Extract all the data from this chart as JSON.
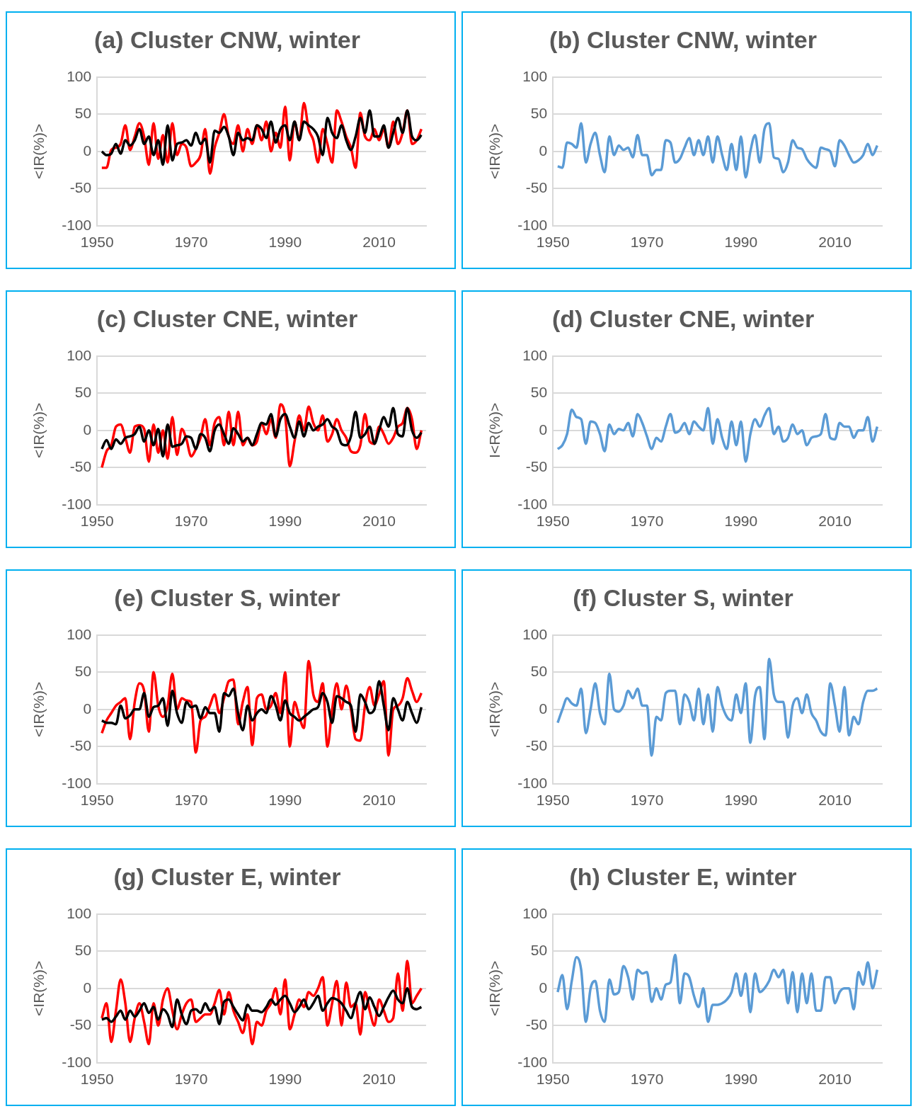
{
  "chart_data": [
    {
      "type": "line",
      "title": "(a) Cluster CNW, winter",
      "ylabel": "<IR(%)>",
      "xlim": [
        1950,
        2020
      ],
      "xticks": [
        1950,
        1970,
        1990,
        2010
      ],
      "ylim": [
        -100,
        100
      ],
      "yticks": [
        -100,
        -50,
        0,
        50,
        100
      ],
      "grid": "y",
      "x": [
        1951,
        1952,
        1953,
        1954,
        1955,
        1956,
        1957,
        1958,
        1959,
        1960,
        1961,
        1962,
        1963,
        1964,
        1965,
        1966,
        1967,
        1968,
        1969,
        1970,
        1971,
        1972,
        1973,
        1974,
        1975,
        1976,
        1977,
        1978,
        1979,
        1980,
        1981,
        1982,
        1983,
        1984,
        1985,
        1986,
        1987,
        1988,
        1989,
        1990,
        1991,
        1992,
        1993,
        1994,
        1995,
        1996,
        1997,
        1998,
        1999,
        2000,
        2001,
        2002,
        2003,
        2004,
        2005,
        2006,
        2007,
        2008,
        2009,
        2010,
        2011,
        2012,
        2013,
        2014,
        2015,
        2016,
        2017,
        2018,
        2019
      ],
      "series": [
        {
          "color": "#ff0000",
          "values": [
            -22,
            -22,
            2,
            5,
            10,
            35,
            2,
            20,
            38,
            20,
            -18,
            38,
            -10,
            22,
            -15,
            38,
            -5,
            10,
            5,
            -20,
            -15,
            -5,
            30,
            -30,
            5,
            25,
            50,
            20,
            10,
            35,
            0,
            30,
            10,
            35,
            15,
            40,
            0,
            25,
            5,
            60,
            -12,
            40,
            15,
            65,
            30,
            15,
            -15,
            30,
            10,
            -15,
            55,
            40,
            20,
            5,
            -22,
            52,
            20,
            15,
            30,
            15,
            30,
            5,
            40,
            10,
            25,
            55,
            10,
            15,
            30
          ]
        },
        {
          "color": "#000000",
          "values": [
            0,
            -5,
            -3,
            10,
            -3,
            15,
            8,
            15,
            30,
            10,
            20,
            -5,
            15,
            -18,
            35,
            -12,
            10,
            12,
            15,
            8,
            25,
            10,
            17,
            -15,
            28,
            25,
            33,
            20,
            -5,
            25,
            15,
            18,
            15,
            35,
            30,
            18,
            40,
            12,
            30,
            35,
            15,
            40,
            15,
            40,
            35,
            30,
            20,
            -5,
            45,
            25,
            18,
            35,
            15,
            2,
            20,
            45,
            25,
            55,
            20,
            20,
            35,
            5,
            25,
            45,
            25,
            55,
            20,
            15,
            22
          ]
        }
      ]
    },
    {
      "type": "line",
      "title": "(b) Cluster CNW, winter",
      "ylabel": "<IR(%)>",
      "xlim": [
        1950,
        2020
      ],
      "xticks": [
        1950,
        1970,
        1990,
        2010
      ],
      "ylim": [
        -100,
        100
      ],
      "yticks": [
        -100,
        -50,
        0,
        50,
        100
      ],
      "grid": "y",
      "x": [
        1951,
        1952,
        1953,
        1954,
        1955,
        1956,
        1957,
        1958,
        1959,
        1960,
        1961,
        1962,
        1963,
        1964,
        1965,
        1966,
        1967,
        1968,
        1969,
        1970,
        1971,
        1972,
        1973,
        1974,
        1975,
        1976,
        1977,
        1978,
        1979,
        1980,
        1981,
        1982,
        1983,
        1984,
        1985,
        1986,
        1987,
        1988,
        1989,
        1990,
        1991,
        1992,
        1993,
        1994,
        1995,
        1996,
        1997,
        1998,
        1999,
        2000,
        2001,
        2002,
        2003,
        2004,
        2005,
        2006,
        2007,
        2008,
        2009,
        2010,
        2011,
        2012,
        2013,
        2014,
        2015,
        2016,
        2017,
        2018,
        2019
      ],
      "series": [
        {
          "color": "#5b9bd5",
          "values": [
            -20,
            -22,
            12,
            10,
            5,
            38,
            -15,
            10,
            25,
            -5,
            -28,
            20,
            -5,
            8,
            2,
            5,
            -8,
            22,
            -5,
            -5,
            -32,
            -25,
            -25,
            15,
            12,
            -15,
            -10,
            5,
            18,
            -5,
            15,
            -5,
            20,
            -15,
            20,
            -5,
            -25,
            10,
            -25,
            20,
            -35,
            0,
            22,
            -15,
            30,
            38,
            -8,
            -10,
            -28,
            -15,
            15,
            5,
            3,
            -10,
            -18,
            -22,
            5,
            3,
            0,
            -20,
            15,
            8,
            -5,
            -15,
            -12,
            -5,
            10,
            -5,
            8
          ]
        }
      ]
    },
    {
      "type": "line",
      "title": "(c) Cluster CNE, winter",
      "ylabel": "<IR(%)>",
      "xlim": [
        1950,
        2020
      ],
      "xticks": [
        1950,
        1970,
        1990,
        2010
      ],
      "ylim": [
        -100,
        100
      ],
      "yticks": [
        -100,
        -50,
        0,
        50,
        100
      ],
      "grid": "y",
      "x": [
        1951,
        1952,
        1953,
        1954,
        1955,
        1956,
        1957,
        1958,
        1959,
        1960,
        1961,
        1962,
        1963,
        1964,
        1965,
        1966,
        1967,
        1968,
        1969,
        1970,
        1971,
        1972,
        1973,
        1974,
        1975,
        1976,
        1977,
        1978,
        1979,
        1980,
        1981,
        1982,
        1983,
        1984,
        1985,
        1986,
        1987,
        1988,
        1989,
        1990,
        1991,
        1992,
        1993,
        1994,
        1995,
        1996,
        1997,
        1998,
        1999,
        2000,
        2001,
        2002,
        2003,
        2004,
        2005,
        2006,
        2007,
        2008,
        2009,
        2010,
        2011,
        2012,
        2013,
        2014,
        2015,
        2016,
        2017,
        2018,
        2019
      ],
      "series": [
        {
          "color": "#ff0000",
          "values": [
            -50,
            -28,
            -20,
            5,
            8,
            -10,
            -30,
            5,
            7,
            2,
            -42,
            8,
            -30,
            0,
            -38,
            18,
            -33,
            2,
            -12,
            -35,
            -25,
            -10,
            15,
            -20,
            10,
            18,
            -20,
            25,
            -20,
            25,
            -20,
            -10,
            -20,
            -15,
            10,
            -5,
            15,
            -10,
            35,
            20,
            -48,
            -15,
            20,
            0,
            32,
            10,
            0,
            20,
            -15,
            -5,
            15,
            0,
            -10,
            -28,
            -30,
            -20,
            22,
            -15,
            -18,
            5,
            -5,
            -18,
            -10,
            5,
            10,
            30,
            15,
            -25,
            0
          ]
        },
        {
          "color": "#000000",
          "values": [
            -25,
            -13,
            -25,
            -12,
            -18,
            -10,
            -8,
            -5,
            5,
            -15,
            0,
            -20,
            2,
            -35,
            8,
            -22,
            -20,
            -18,
            -8,
            -10,
            -25,
            -5,
            -10,
            -28,
            0,
            8,
            -5,
            -18,
            3,
            -5,
            -15,
            -10,
            -20,
            -5,
            10,
            8,
            22,
            -8,
            15,
            22,
            5,
            -10,
            12,
            -8,
            10,
            0,
            5,
            8,
            15,
            5,
            0,
            -18,
            -20,
            -8,
            25,
            -10,
            -5,
            5,
            -18,
            0,
            18,
            5,
            30,
            -5,
            -8,
            30,
            0,
            -10,
            -3
          ]
        }
      ]
    },
    {
      "type": "line",
      "title": "(d) Cluster CNE, winter",
      "ylabel": "I<R(%)>",
      "xlim": [
        1950,
        2020
      ],
      "xticks": [
        1950,
        1970,
        1990,
        2010
      ],
      "ylim": [
        -100,
        100
      ],
      "yticks": [
        -100,
        -50,
        0,
        50,
        100
      ],
      "grid": "y",
      "x": [
        1951,
        1952,
        1953,
        1954,
        1955,
        1956,
        1957,
        1958,
        1959,
        1960,
        1961,
        1962,
        1963,
        1964,
        1965,
        1966,
        1967,
        1968,
        1969,
        1970,
        1971,
        1972,
        1973,
        1974,
        1975,
        1976,
        1977,
        1978,
        1979,
        1980,
        1981,
        1982,
        1983,
        1984,
        1985,
        1986,
        1987,
        1988,
        1989,
        1990,
        1991,
        1992,
        1993,
        1994,
        1995,
        1996,
        1997,
        1998,
        1999,
        2000,
        2001,
        2002,
        2003,
        2004,
        2005,
        2006,
        2007,
        2008,
        2009,
        2010,
        2011,
        2012,
        2013,
        2014,
        2015,
        2016,
        2017,
        2018,
        2019
      ],
      "series": [
        {
          "color": "#5b9bd5",
          "values": [
            -25,
            -20,
            -5,
            28,
            18,
            15,
            -18,
            12,
            10,
            -5,
            -28,
            8,
            -5,
            2,
            0,
            10,
            -8,
            22,
            10,
            -8,
            -25,
            -10,
            -15,
            5,
            22,
            -3,
            0,
            10,
            -5,
            12,
            5,
            0,
            30,
            -18,
            15,
            -10,
            -25,
            12,
            -20,
            12,
            -42,
            -5,
            15,
            5,
            20,
            30,
            -5,
            5,
            -15,
            -10,
            8,
            -5,
            0,
            -20,
            -10,
            -8,
            -5,
            22,
            -10,
            -12,
            10,
            5,
            5,
            -10,
            0,
            0,
            18,
            -15,
            5
          ]
        }
      ]
    },
    {
      "type": "line",
      "title": "(e) Cluster S, winter",
      "ylabel": "<IR(%)>",
      "xlim": [
        1950,
        2020
      ],
      "xticks": [
        1950,
        1970,
        1990,
        2010
      ],
      "ylim": [
        -100,
        100
      ],
      "yticks": [
        -100,
        -50,
        0,
        50,
        100
      ],
      "grid": "y",
      "x": [
        1951,
        1952,
        1953,
        1954,
        1955,
        1956,
        1957,
        1958,
        1959,
        1960,
        1961,
        1962,
        1963,
        1964,
        1965,
        1966,
        1967,
        1968,
        1969,
        1970,
        1971,
        1972,
        1973,
        1974,
        1975,
        1976,
        1977,
        1978,
        1979,
        1980,
        1981,
        1982,
        1983,
        1984,
        1985,
        1986,
        1987,
        1988,
        1989,
        1990,
        1991,
        1992,
        1993,
        1994,
        1995,
        1996,
        1997,
        1998,
        1999,
        2000,
        2001,
        2002,
        2003,
        2004,
        2005,
        2006,
        2007,
        2008,
        2009,
        2010,
        2011,
        2012,
        2013,
        2014,
        2015,
        2016,
        2017,
        2018,
        2019
      ],
      "series": [
        {
          "color": "#ff0000",
          "values": [
            -32,
            -15,
            -5,
            5,
            10,
            15,
            -40,
            10,
            35,
            25,
            -30,
            50,
            5,
            -10,
            5,
            48,
            0,
            15,
            12,
            10,
            -58,
            -15,
            -10,
            5,
            20,
            -5,
            15,
            38,
            40,
            -20,
            10,
            30,
            -48,
            15,
            20,
            0,
            5,
            22,
            -5,
            50,
            -50,
            10,
            -10,
            -25,
            65,
            20,
            10,
            35,
            -50,
            0,
            35,
            0,
            32,
            0,
            -40,
            -42,
            5,
            30,
            5,
            20,
            38,
            -62,
            0,
            5,
            15,
            42,
            25,
            10,
            22
          ]
        },
        {
          "color": "#000000",
          "values": [
            -15,
            -18,
            -18,
            -20,
            5,
            -12,
            -8,
            0,
            0,
            22,
            -10,
            3,
            5,
            15,
            -22,
            25,
            -5,
            -18,
            10,
            3,
            5,
            -12,
            3,
            -5,
            -5,
            -30,
            22,
            18,
            28,
            -5,
            -28,
            5,
            -15,
            -5,
            0,
            -5,
            18,
            5,
            -15,
            12,
            -5,
            -10,
            -15,
            -10,
            -5,
            0,
            3,
            22,
            10,
            -18,
            18,
            15,
            10,
            5,
            -30,
            20,
            10,
            -5,
            0,
            38,
            5,
            -28,
            15,
            0,
            -15,
            10,
            -5,
            -18,
            3
          ]
        }
      ]
    },
    {
      "type": "line",
      "title": "(f) Cluster S, winter",
      "ylabel": "<IR(%)>",
      "xlim": [
        1950,
        2020
      ],
      "xticks": [
        1950,
        1970,
        1990,
        2010
      ],
      "ylim": [
        -100,
        100
      ],
      "yticks": [
        -100,
        -50,
        0,
        50,
        100
      ],
      "grid": "y",
      "x": [
        1951,
        1952,
        1953,
        1954,
        1955,
        1956,
        1957,
        1958,
        1959,
        1960,
        1961,
        1962,
        1963,
        1964,
        1965,
        1966,
        1967,
        1968,
        1969,
        1970,
        1971,
        1972,
        1973,
        1974,
        1975,
        1976,
        1977,
        1978,
        1979,
        1980,
        1981,
        1982,
        1983,
        1984,
        1985,
        1986,
        1987,
        1988,
        1989,
        1990,
        1991,
        1992,
        1993,
        1994,
        1995,
        1996,
        1997,
        1998,
        1999,
        2000,
        2001,
        2002,
        2003,
        2004,
        2005,
        2006,
        2007,
        2008,
        2009,
        2010,
        2011,
        2012,
        2013,
        2014,
        2015,
        2016,
        2017,
        2018,
        2019
      ],
      "series": [
        {
          "color": "#5b9bd5",
          "values": [
            -18,
            0,
            15,
            8,
            5,
            28,
            -32,
            0,
            35,
            -5,
            -20,
            48,
            0,
            -3,
            5,
            25,
            15,
            28,
            5,
            5,
            -62,
            -10,
            -15,
            22,
            25,
            25,
            -20,
            20,
            10,
            -15,
            28,
            -20,
            20,
            -30,
            30,
            5,
            -10,
            -15,
            20,
            -5,
            35,
            -45,
            18,
            30,
            -40,
            68,
            20,
            10,
            10,
            -38,
            5,
            15,
            -5,
            20,
            -5,
            -15,
            -30,
            -35,
            35,
            5,
            -30,
            30,
            -35,
            -10,
            -20,
            10,
            25,
            25,
            28
          ]
        }
      ]
    },
    {
      "type": "line",
      "title": "(g) Cluster E, winter",
      "ylabel": "<IR(%)>",
      "xlim": [
        1950,
        2020
      ],
      "xticks": [
        1950,
        1970,
        1990,
        2010
      ],
      "ylim": [
        -100,
        100
      ],
      "yticks": [
        -100,
        -50,
        0,
        50,
        100
      ],
      "grid": "y",
      "x": [
        1951,
        1952,
        1953,
        1954,
        1955,
        1956,
        1957,
        1958,
        1959,
        1960,
        1961,
        1962,
        1963,
        1964,
        1965,
        1966,
        1967,
        1968,
        1969,
        1970,
        1971,
        1972,
        1973,
        1974,
        1975,
        1976,
        1977,
        1978,
        1979,
        1980,
        1981,
        1982,
        1983,
        1984,
        1985,
        1986,
        1987,
        1988,
        1989,
        1990,
        1991,
        1992,
        1993,
        1994,
        1995,
        1996,
        1997,
        1998,
        1999,
        2000,
        2001,
        2002,
        2003,
        2004,
        2005,
        2006,
        2007,
        2008,
        2009,
        2010,
        2011,
        2012,
        2013,
        2014,
        2015,
        2016,
        2017,
        2018,
        2019
      ],
      "series": [
        {
          "color": "#ff0000",
          "values": [
            -40,
            -20,
            -72,
            -30,
            12,
            -20,
            -72,
            -40,
            -20,
            -45,
            -75,
            -20,
            -50,
            -15,
            0,
            -30,
            -55,
            -35,
            -20,
            -15,
            -45,
            -40,
            -35,
            -35,
            -20,
            -2,
            -35,
            -5,
            -30,
            -45,
            -60,
            -35,
            -75,
            -45,
            -50,
            -30,
            -20,
            0,
            -35,
            12,
            -55,
            -35,
            -15,
            -25,
            -5,
            -10,
            0,
            15,
            -50,
            -20,
            10,
            -50,
            8,
            -25,
            -20,
            -62,
            -5,
            -30,
            -50,
            -15,
            -30,
            -45,
            -40,
            20,
            -30,
            37,
            -20,
            -10,
            0
          ]
        },
        {
          "color": "#000000",
          "values": [
            -42,
            -40,
            -45,
            -38,
            -30,
            -42,
            -30,
            -38,
            -30,
            -20,
            -33,
            -25,
            -42,
            -28,
            -35,
            -52,
            -15,
            -35,
            -48,
            -30,
            -28,
            -33,
            -20,
            -30,
            -25,
            -48,
            -18,
            -15,
            -25,
            -35,
            -43,
            -22,
            -30,
            -30,
            -32,
            -25,
            -15,
            -22,
            -15,
            -10,
            -20,
            -32,
            -25,
            -15,
            -28,
            -20,
            -10,
            -30,
            -20,
            -13,
            -15,
            -20,
            -30,
            -40,
            -20,
            -5,
            -28,
            -12,
            -25,
            -37,
            -25,
            -12,
            -3,
            -15,
            -20,
            0,
            -25,
            -28,
            -25
          ]
        }
      ]
    },
    {
      "type": "line",
      "title": "(h) Cluster E, winter",
      "ylabel": "<IR(%)>",
      "xlim": [
        1950,
        2020
      ],
      "xticks": [
        1950,
        1970,
        1990,
        2010
      ],
      "ylim": [
        -100,
        100
      ],
      "yticks": [
        -100,
        -50,
        0,
        50,
        100
      ],
      "grid": "y",
      "x": [
        1951,
        1952,
        1953,
        1954,
        1955,
        1956,
        1957,
        1958,
        1959,
        1960,
        1961,
        1962,
        1963,
        1964,
        1965,
        1966,
        1967,
        1968,
        1969,
        1970,
        1971,
        1972,
        1973,
        1974,
        1975,
        1976,
        1977,
        1978,
        1979,
        1980,
        1981,
        1982,
        1983,
        1984,
        1985,
        1986,
        1987,
        1988,
        1989,
        1990,
        1991,
        1992,
        1993,
        1994,
        1995,
        1996,
        1997,
        1998,
        1999,
        2000,
        2001,
        2002,
        2003,
        2004,
        2005,
        2006,
        2007,
        2008,
        2009,
        2010,
        2011,
        2012,
        2013,
        2014,
        2015,
        2016,
        2017,
        2018,
        2019
      ],
      "series": [
        {
          "color": "#5b9bd5",
          "values": [
            -5,
            18,
            -28,
            10,
            42,
            25,
            -45,
            0,
            10,
            -30,
            -45,
            12,
            -8,
            -5,
            30,
            15,
            -15,
            25,
            20,
            22,
            -18,
            0,
            -15,
            5,
            8,
            45,
            -20,
            20,
            15,
            -10,
            -25,
            0,
            -45,
            -22,
            -22,
            -20,
            -15,
            -5,
            20,
            -10,
            20,
            -32,
            20,
            -5,
            0,
            10,
            25,
            15,
            25,
            -20,
            22,
            -32,
            20,
            -20,
            20,
            -30,
            -30,
            15,
            15,
            -20,
            -5,
            0,
            0,
            -28,
            22,
            5,
            35,
            0,
            25
          ]
        }
      ]
    }
  ]
}
